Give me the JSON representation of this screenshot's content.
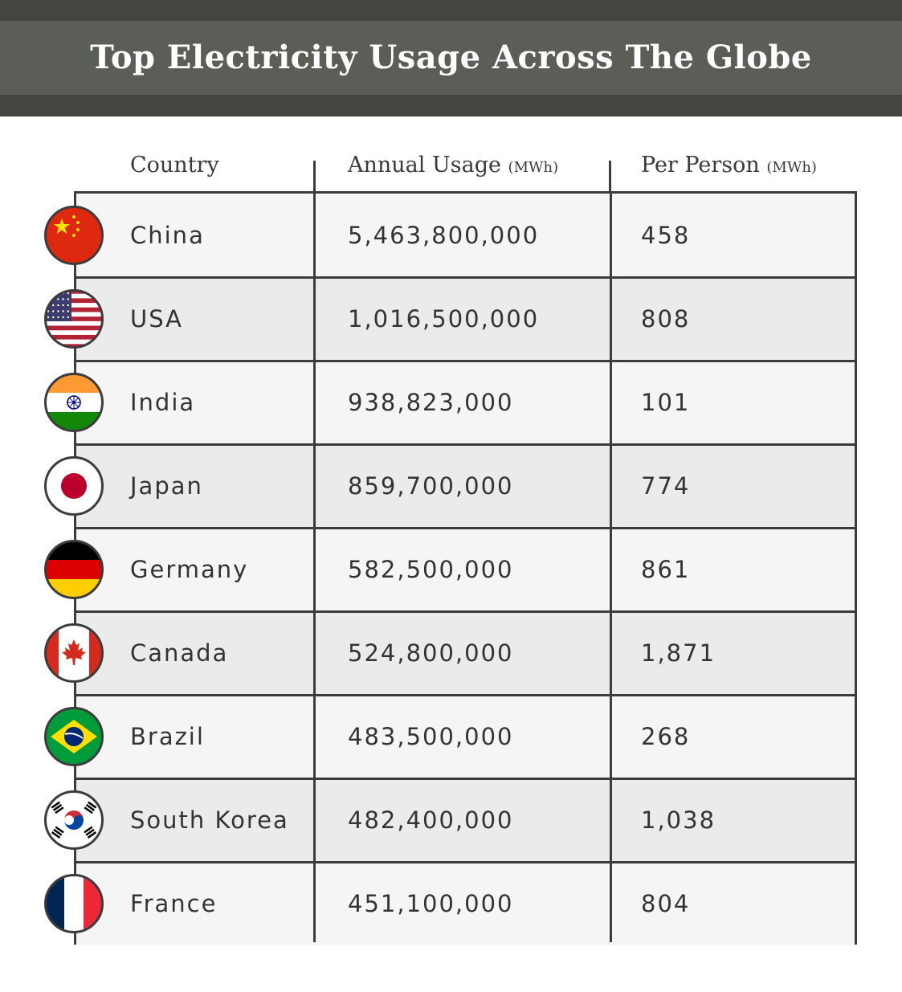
{
  "title": "Top Electricity Usage Across The Globe",
  "headers": {
    "country": "Country",
    "annual_label": "Annual Usage",
    "annual_unit": "(MWh)",
    "per_person_label": "Per Person",
    "per_person_unit": "(MWh)"
  },
  "colors": {
    "banner_dark": "#42463f",
    "banner_mid": "#5a5e57",
    "row_light": "#f5f5f5",
    "row_dark": "#ebebeb",
    "grid": "#3c3c3c"
  },
  "rows": [
    {
      "country": "China",
      "annual": "5,463,800,000",
      "per_person": "458",
      "flag": "china-flag-icon"
    },
    {
      "country": "USA",
      "annual": "1,016,500,000",
      "per_person": "808",
      "flag": "usa-flag-icon"
    },
    {
      "country": "India",
      "annual": "938,823,000",
      "per_person": "101",
      "flag": "india-flag-icon"
    },
    {
      "country": "Japan",
      "annual": "859,700,000",
      "per_person": "774",
      "flag": "japan-flag-icon"
    },
    {
      "country": "Germany",
      "annual": "582,500,000",
      "per_person": "861",
      "flag": "germany-flag-icon"
    },
    {
      "country": "Canada",
      "annual": "524,800,000",
      "per_person": "1,871",
      "flag": "canada-flag-icon"
    },
    {
      "country": "Brazil",
      "annual": "483,500,000",
      "per_person": "268",
      "flag": "brazil-flag-icon"
    },
    {
      "country": "South Korea",
      "annual": "482,400,000",
      "per_person": "1,038",
      "flag": "south-korea-flag-icon"
    },
    {
      "country": "France",
      "annual": "451,100,000",
      "per_person": "804",
      "flag": "france-flag-icon"
    }
  ],
  "chart_data": {
    "type": "table",
    "title": "Top Electricity Usage Across The Globe",
    "columns": [
      "Country",
      "Annual Usage (MWh)",
      "Per Person (MWh)"
    ],
    "rows": [
      [
        "China",
        5463800000,
        458
      ],
      [
        "USA",
        1016500000,
        808
      ],
      [
        "India",
        938823000,
        101
      ],
      [
        "Japan",
        859700000,
        774
      ],
      [
        "Germany",
        582500000,
        861
      ],
      [
        "Canada",
        524800000,
        1871
      ],
      [
        "Brazil",
        483500000,
        268
      ],
      [
        "South Korea",
        482400000,
        1038
      ],
      [
        "France",
        451100000,
        804
      ]
    ]
  }
}
